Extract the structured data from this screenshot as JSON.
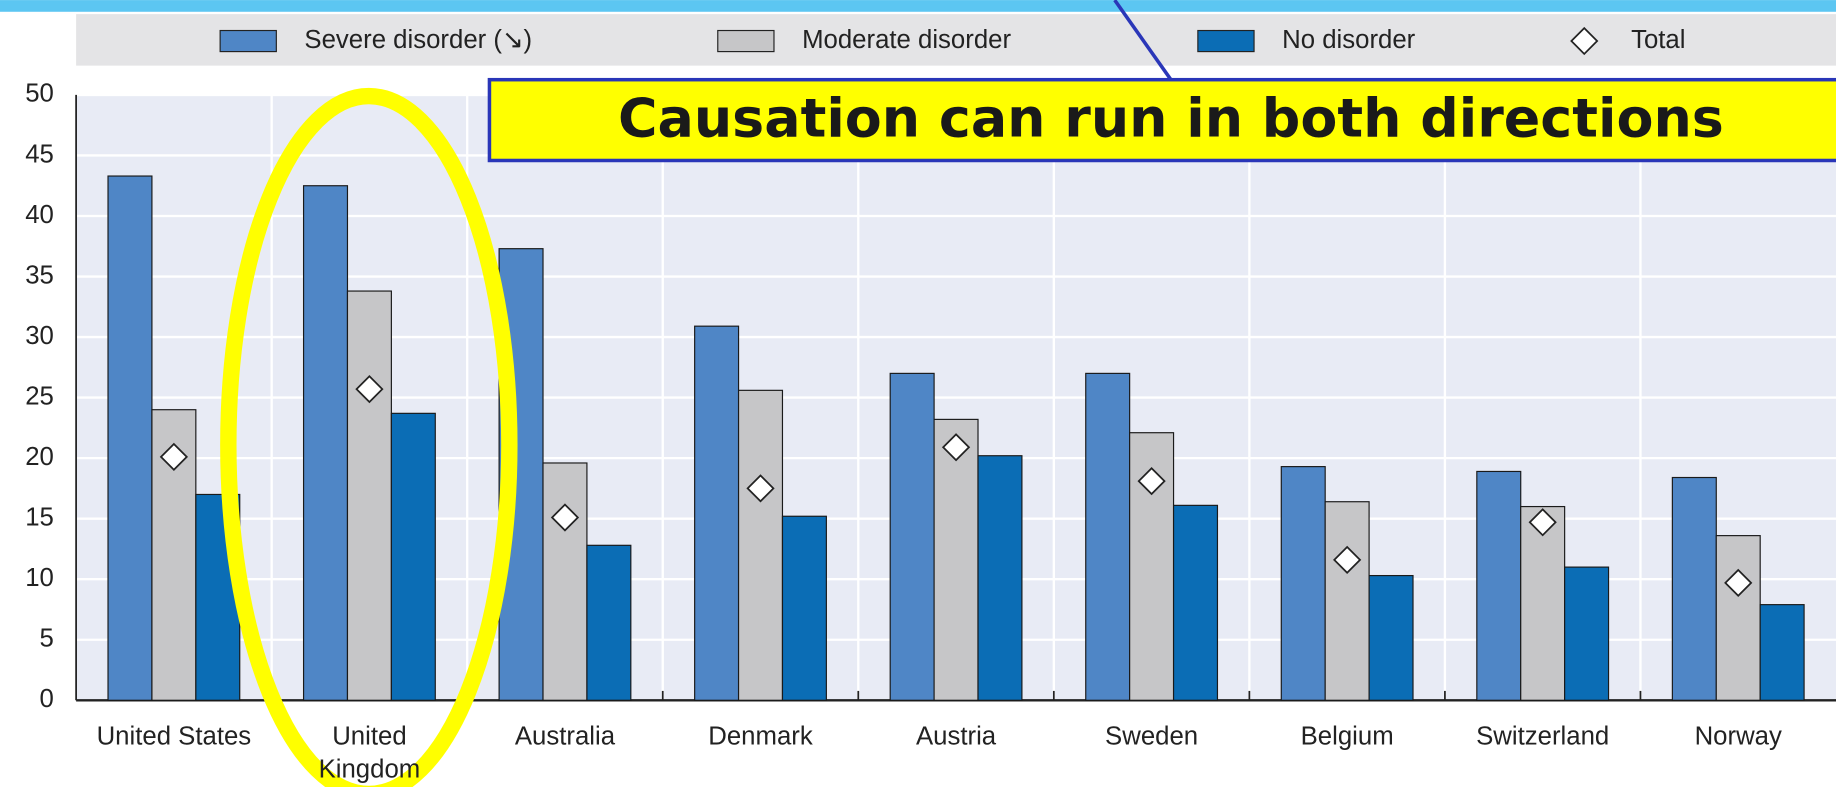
{
  "chart_data": {
    "type": "bar",
    "annotation": "Causation can run in both directions",
    "categories": [
      "United States",
      "United\nKingdom",
      "Australia",
      "Denmark",
      "Austria",
      "Sweden",
      "Belgium",
      "Switzerland",
      "Norway"
    ],
    "series": [
      {
        "name": "Severe disorder (↘)",
        "color": "#4f86c6",
        "values": [
          43.3,
          42.5,
          37.3,
          30.9,
          27.0,
          27.0,
          19.3,
          18.9,
          18.4
        ]
      },
      {
        "name": "Moderate disorder",
        "color": "#c6c6c8",
        "values": [
          24.0,
          33.8,
          19.6,
          25.6,
          23.2,
          22.1,
          16.4,
          16.0,
          13.6
        ]
      },
      {
        "name": "No disorder",
        "color": "#0b6db5",
        "values": [
          17.0,
          23.7,
          12.8,
          15.2,
          20.2,
          16.1,
          10.3,
          11.0,
          7.9
        ]
      },
      {
        "name": "Total",
        "color": "#ffffff",
        "marker": "diamond",
        "values": [
          20.1,
          25.7,
          15.1,
          17.5,
          20.9,
          18.1,
          11.6,
          14.7,
          9.7
        ]
      }
    ],
    "ylim": [
      0,
      50
    ],
    "yticks": [
      0,
      5,
      10,
      15,
      20,
      25,
      30,
      35,
      40,
      45,
      50
    ],
    "grid": true
  }
}
